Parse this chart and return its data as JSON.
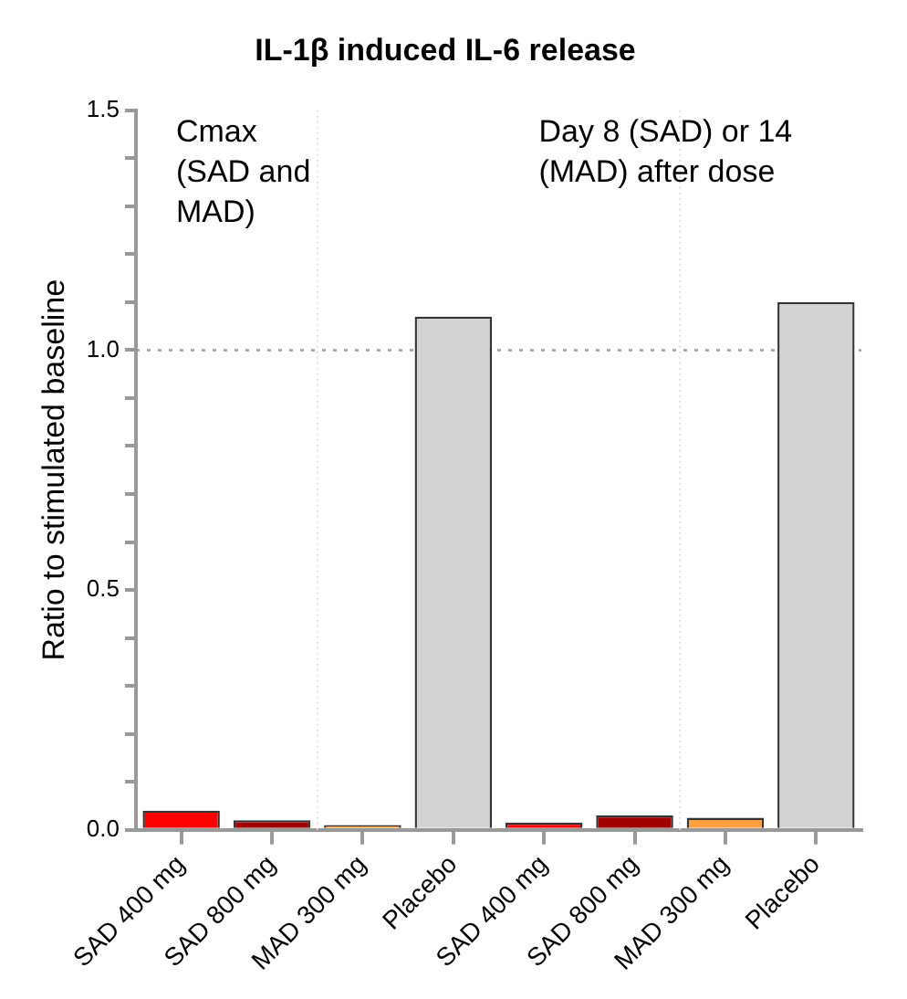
{
  "chart_data": {
    "type": "bar",
    "title": "IL-1β induced IL-6 release",
    "ylabel": "Ratio to stimulated baseline",
    "categories": [
      "SAD 400 mg",
      "SAD 800 mg",
      "MAD 300 mg",
      "Placebo",
      "SAD 400 mg",
      "SAD 800 mg",
      "MAD 300 mg",
      "Placebo"
    ],
    "values": [
      0.04,
      0.02,
      0.01,
      1.07,
      0.015,
      0.03,
      0.025,
      1.1
    ],
    "colors": [
      "#ff0000",
      "#a00000",
      "#ffa040",
      "#d3d3d3",
      "#ff0000",
      "#a00000",
      "#ffa040",
      "#d3d3d3"
    ],
    "ylim": [
      0,
      1.5
    ],
    "yticks": [
      {
        "value": 0,
        "label": "0.0"
      },
      {
        "value": 0.1,
        "label": null
      },
      {
        "value": 0.2,
        "label": null
      },
      {
        "value": 0.3,
        "label": null
      },
      {
        "value": 0.4,
        "label": null
      },
      {
        "value": 0.5,
        "label": "0.5"
      },
      {
        "value": 0.6,
        "label": null
      },
      {
        "value": 0.7,
        "label": null
      },
      {
        "value": 0.8,
        "label": null
      },
      {
        "value": 0.9,
        "label": null
      },
      {
        "value": 1,
        "label": "1.0"
      },
      {
        "value": 1.1,
        "label": null
      },
      {
        "value": 1.2,
        "label": null
      },
      {
        "value": 1.3,
        "label": null
      },
      {
        "value": 1.4,
        "label": null
      },
      {
        "value": 1.5,
        "label": "1.5"
      }
    ],
    "ref_lines": [
      {
        "axis": "y",
        "value": 1,
        "line_style": "dotted",
        "color": "#999999"
      }
    ],
    "annotations": [
      "Cmax (SAD and MAD)",
      "Day 8 (SAD) or 14 (MAD) after dose"
    ],
    "grid": false,
    "legend": false
  }
}
